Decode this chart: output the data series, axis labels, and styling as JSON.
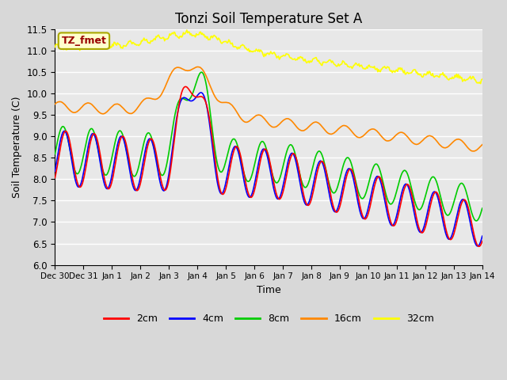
{
  "title": "Tonzi Soil Temperature Set A",
  "xlabel": "Time",
  "ylabel": "Soil Temperature (C)",
  "ylim": [
    6.0,
    11.5
  ],
  "annotation_text": "TZ_fmet",
  "annotation_bg": "#ffffcc",
  "annotation_border": "#aaa800",
  "annotation_fg": "#990000",
  "fig_bg": "#d8d8d8",
  "plot_bg": "#e8e8e8",
  "line_colors": {
    "2cm": "#ff0000",
    "4cm": "#0000ff",
    "8cm": "#00cc00",
    "16cm": "#ff8800",
    "32cm": "#ffff00"
  },
  "xtick_labels": [
    "Dec 30",
    "Dec 31",
    "Jan 1",
    "Jan 2",
    "Jan 3",
    "Jan 4",
    "Jan 5",
    "Jan 6",
    "Jan 7",
    "Jan 8",
    "Jan 9",
    "Jan 10",
    "Jan 11",
    "Jan 12",
    "Jan 13",
    "Jan 14"
  ],
  "ytick_positions": [
    6.0,
    6.5,
    7.0,
    7.5,
    8.0,
    8.5,
    9.0,
    9.5,
    10.0,
    10.5,
    11.0,
    11.5
  ],
  "grid_color": "#ffffff",
  "line_width": 1.2
}
